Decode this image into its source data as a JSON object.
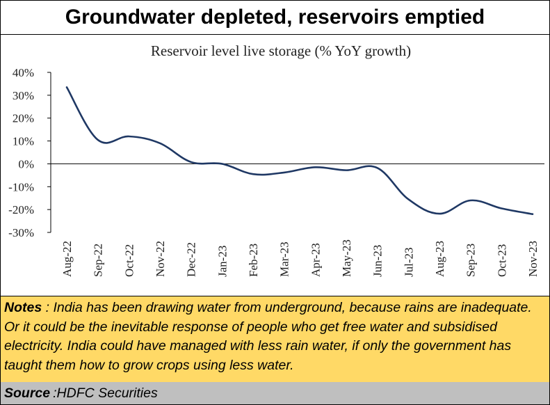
{
  "headline": "Groundwater depleted, reservoirs emptied",
  "notes": {
    "label": "Notes",
    "separator": " : ",
    "text": "India has been drawing water from underground, because rains are inadequate.  Or it could be the inevitable response of people who get free water and subsidised electricity. India could have managed with less rain water, if only the government has taught them how to grow crops using less water."
  },
  "source": {
    "label": "Source",
    "separator": " : ",
    "text": "HDFC Securities"
  },
  "chart_data": {
    "type": "line",
    "title": "Reservoir level live storage (% YoY growth)",
    "xlabel": "",
    "ylabel": "",
    "categories": [
      "Aug-22",
      "Sep-22",
      "Oct-22",
      "Nov-22",
      "Dec-22",
      "Jan-23",
      "Feb-23",
      "Mar-23",
      "Apr-23",
      "May-23",
      "Jun-23",
      "Jul-23",
      "Aug-23",
      "Sep-23",
      "Oct-23",
      "Nov-23"
    ],
    "series": [
      {
        "values": [
          33.5,
          10.5,
          12,
          9,
          0.8,
          0,
          -4.5,
          -3.8,
          -1.5,
          -2.8,
          -1.8,
          -15.5,
          -21.8,
          -16,
          -19.5,
          -22
        ],
        "color": "#1f3864"
      }
    ],
    "ylim": [
      -30,
      40
    ],
    "yticks": [
      40,
      30,
      20,
      10,
      0,
      -10,
      -20,
      -30
    ],
    "ytick_labels": [
      "40%",
      "30%",
      "20%",
      "10%",
      "0%",
      "-10%",
      "-20%",
      "-30%"
    ],
    "grid": false,
    "legend": "none"
  }
}
